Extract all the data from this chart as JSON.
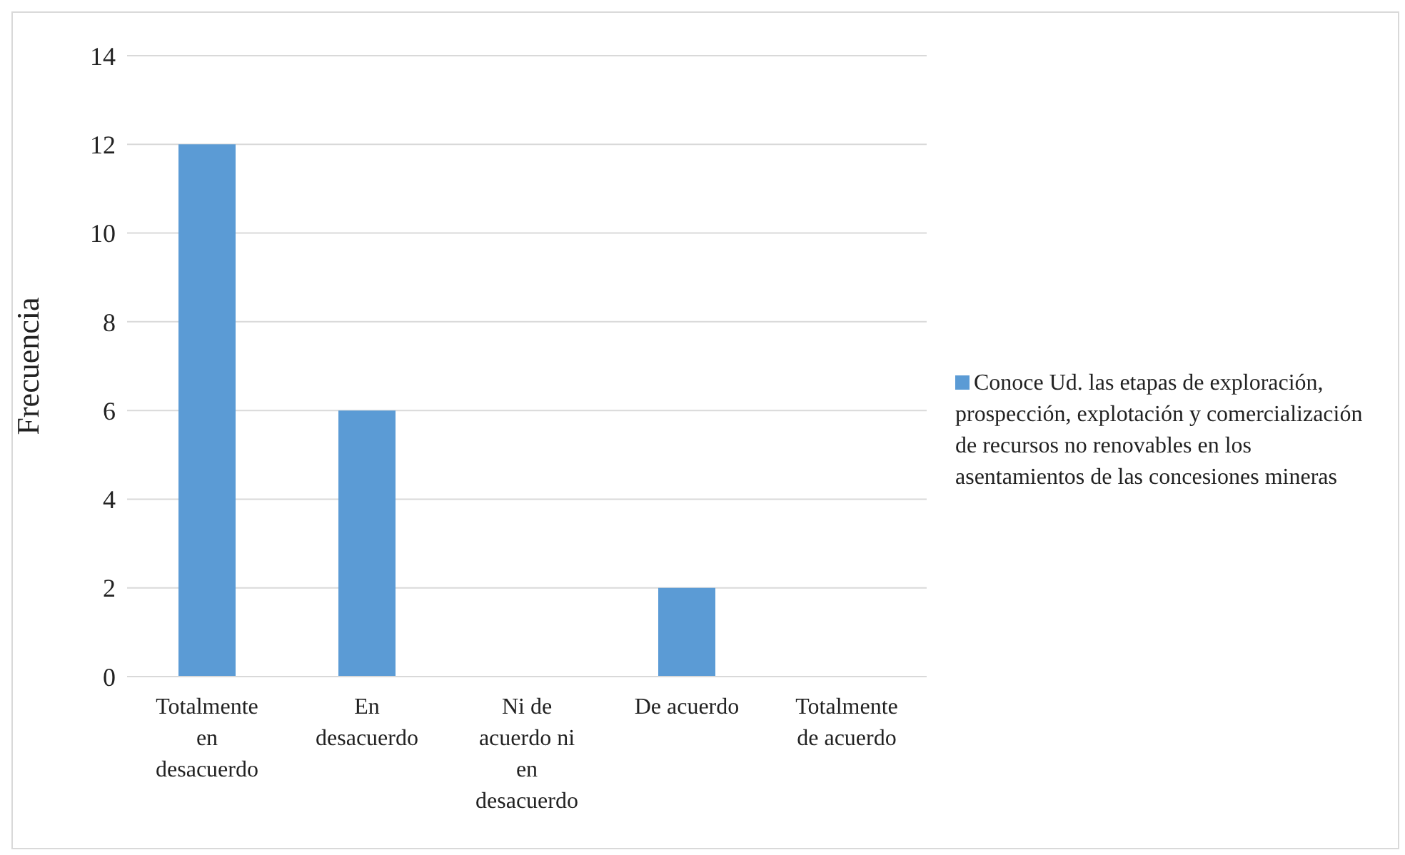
{
  "chart_data": {
    "type": "bar",
    "ylabel": "Frecuencia",
    "categories": [
      "Totalmente en desacuerdo",
      "En desacuerdo",
      "Ni de acuerdo ni en desacuerdo",
      "De acuerdo",
      "Totalmente de acuerdo"
    ],
    "series": [
      {
        "name": "Conoce Ud. las etapas de exploración, prospección, explotación y comercialización de recursos no renovables en los asentamientos de las concesiones mineras",
        "color": "#5b9bd5",
        "values": [
          12,
          6,
          0,
          2,
          0
        ]
      }
    ],
    "ylim": [
      0,
      14
    ],
    "yticks": [
      0,
      2,
      4,
      6,
      8,
      10,
      12,
      14
    ],
    "grid": "y",
    "legend": "right"
  }
}
